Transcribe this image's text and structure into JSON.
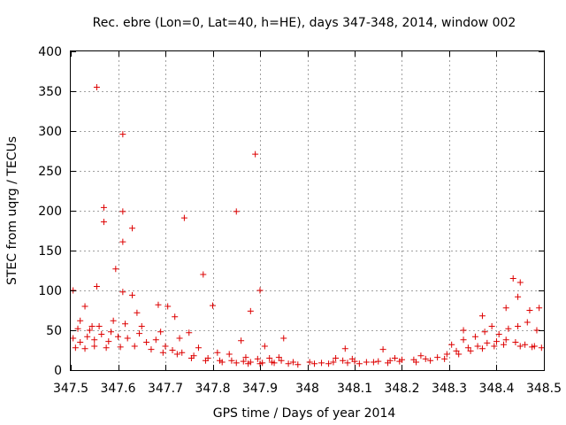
{
  "chart_data": {
    "type": "scatter",
    "title": "Rec. ebre (Lon=0, Lat=40, h=HE), days 347-348, 2014, window 002",
    "xlabel": "GPS time / Days of year 2014",
    "ylabel": "STEC from uqrg / TECUs",
    "xlim": [
      347.5,
      348.5
    ],
    "ylim": [
      0,
      400
    ],
    "xticks": [
      347.5,
      347.6,
      347.7,
      347.8,
      347.9,
      348.0,
      348.1,
      348.2,
      348.3,
      348.4,
      348.5
    ],
    "xtick_labels": [
      "347.5",
      "347.6",
      "347.7",
      "347.8",
      "347.9",
      "348",
      "348.1",
      "348.2",
      "348.3",
      "348.4",
      "348.5"
    ],
    "yticks": [
      0,
      50,
      100,
      150,
      200,
      250,
      300,
      350,
      400
    ],
    "ytick_labels": [
      "0",
      "50",
      "100",
      "150",
      "200",
      "250",
      "300",
      "350",
      "400"
    ],
    "grid": true,
    "marker": "+",
    "color": "#dd0000",
    "series": [
      {
        "name": "STEC",
        "points": [
          [
            347.555,
            355
          ],
          [
            347.61,
            296
          ],
          [
            347.89,
            271
          ],
          [
            347.57,
            204
          ],
          [
            347.61,
            199
          ],
          [
            347.85,
            199
          ],
          [
            347.74,
            191
          ],
          [
            347.57,
            186
          ],
          [
            347.63,
            178
          ],
          [
            347.61,
            161
          ],
          [
            347.595,
            127
          ],
          [
            347.78,
            120
          ],
          [
            347.555,
            105
          ],
          [
            347.9,
            100
          ],
          [
            347.505,
            100
          ],
          [
            347.61,
            98
          ],
          [
            347.63,
            94
          ],
          [
            347.88,
            74
          ],
          [
            347.685,
            82
          ],
          [
            347.705,
            80
          ],
          [
            347.53,
            80
          ],
          [
            347.8,
            81
          ],
          [
            347.52,
            62
          ],
          [
            347.545,
            55
          ],
          [
            347.59,
            62
          ],
          [
            347.64,
            72
          ],
          [
            347.72,
            67
          ],
          [
            347.75,
            47
          ],
          [
            347.86,
            37
          ],
          [
            347.91,
            30
          ],
          [
            347.95,
            40
          ],
          [
            348.08,
            27
          ],
          [
            348.16,
            26
          ],
          [
            348.33,
            50
          ],
          [
            348.37,
            68
          ],
          [
            348.39,
            55
          ],
          [
            348.435,
            115
          ],
          [
            348.45,
            110
          ],
          [
            348.445,
            92
          ],
          [
            348.42,
            78
          ],
          [
            348.49,
            78
          ],
          [
            348.47,
            75
          ],
          [
            347.505,
            40
          ],
          [
            347.52,
            35
          ],
          [
            347.535,
            42
          ],
          [
            347.55,
            38
          ],
          [
            347.565,
            45
          ],
          [
            347.58,
            36
          ],
          [
            347.6,
            42
          ],
          [
            347.62,
            40
          ],
          [
            347.645,
            46
          ],
          [
            347.66,
            35
          ],
          [
            347.68,
            38
          ],
          [
            347.7,
            30
          ],
          [
            347.715,
            25
          ],
          [
            347.735,
            22
          ],
          [
            347.76,
            18
          ],
          [
            347.79,
            15
          ],
          [
            347.815,
            12
          ],
          [
            347.84,
            12
          ],
          [
            347.865,
            11
          ],
          [
            347.88,
            10
          ],
          [
            347.905,
            9
          ],
          [
            347.93,
            9
          ],
          [
            347.96,
            8
          ],
          [
            347.98,
            7
          ],
          [
            348.005,
            10
          ],
          [
            348.03,
            9
          ],
          [
            348.055,
            10
          ],
          [
            348.075,
            12
          ],
          [
            348.1,
            11
          ],
          [
            348.125,
            10
          ],
          [
            348.15,
            11
          ],
          [
            348.175,
            12
          ],
          [
            348.2,
            13
          ],
          [
            348.225,
            13
          ],
          [
            348.25,
            14
          ],
          [
            348.275,
            16
          ],
          [
            348.295,
            20
          ],
          [
            348.315,
            24
          ],
          [
            348.34,
            28
          ],
          [
            348.36,
            30
          ],
          [
            348.38,
            34
          ],
          [
            348.4,
            36
          ],
          [
            348.42,
            38
          ],
          [
            348.44,
            35
          ],
          [
            348.46,
            32
          ],
          [
            348.48,
            30
          ],
          [
            348.495,
            28
          ],
          [
            347.51,
            28
          ],
          [
            347.53,
            27
          ],
          [
            347.55,
            30
          ],
          [
            347.575,
            28
          ],
          [
            347.605,
            29
          ],
          [
            347.635,
            30
          ],
          [
            347.67,
            26
          ],
          [
            347.695,
            22
          ],
          [
            347.725,
            20
          ],
          [
            347.755,
            15
          ],
          [
            347.785,
            12
          ],
          [
            347.82,
            10
          ],
          [
            347.85,
            9
          ],
          [
            347.875,
            8
          ],
          [
            347.9,
            8
          ],
          [
            347.925,
            10
          ],
          [
            347.945,
            12
          ],
          [
            347.97,
            10
          ],
          [
            348.015,
            8
          ],
          [
            348.045,
            8
          ],
          [
            348.085,
            9
          ],
          [
            348.11,
            8
          ],
          [
            348.14,
            10
          ],
          [
            348.17,
            9
          ],
          [
            348.195,
            11
          ],
          [
            348.23,
            10
          ],
          [
            348.26,
            12
          ],
          [
            348.29,
            14
          ],
          [
            348.32,
            20
          ],
          [
            348.345,
            24
          ],
          [
            348.37,
            27
          ],
          [
            348.395,
            30
          ],
          [
            348.415,
            32
          ],
          [
            348.45,
            30
          ],
          [
            348.475,
            29
          ],
          [
            347.515,
            52
          ],
          [
            347.54,
            50
          ],
          [
            347.56,
            55
          ],
          [
            347.585,
            48
          ],
          [
            347.615,
            58
          ],
          [
            347.65,
            55
          ],
          [
            347.69,
            48
          ],
          [
            347.73,
            40
          ],
          [
            347.77,
            28
          ],
          [
            347.81,
            22
          ],
          [
            347.835,
            20
          ],
          [
            347.87,
            16
          ],
          [
            347.895,
            14
          ],
          [
            347.92,
            15
          ],
          [
            347.94,
            16
          ],
          [
            348.06,
            15
          ],
          [
            348.095,
            14
          ],
          [
            348.185,
            15
          ],
          [
            348.24,
            18
          ],
          [
            348.305,
            32
          ],
          [
            348.33,
            38
          ],
          [
            348.355,
            42
          ],
          [
            348.375,
            48
          ],
          [
            348.405,
            45
          ],
          [
            348.425,
            52
          ],
          [
            348.445,
            55
          ],
          [
            348.465,
            60
          ],
          [
            348.485,
            50
          ]
        ]
      }
    ]
  }
}
